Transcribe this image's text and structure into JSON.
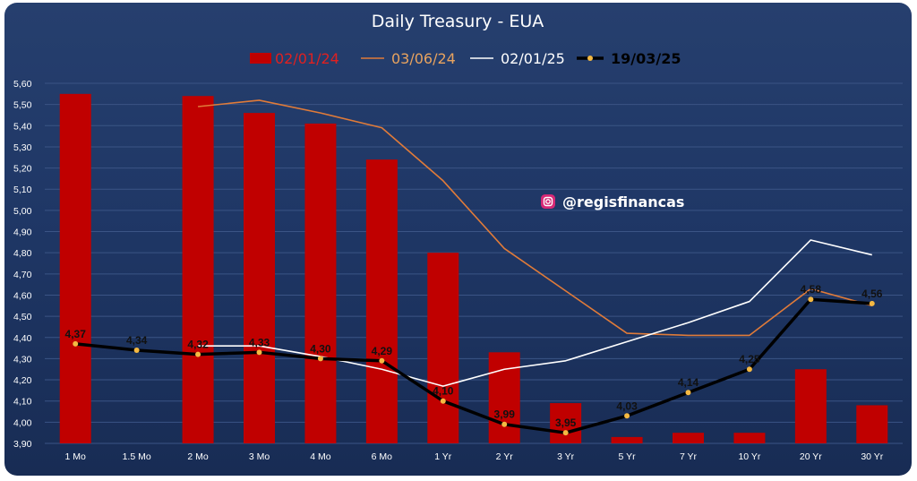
{
  "chart_data": {
    "type": "bar",
    "title": "Daily Treasury - EUA",
    "categories": [
      "1 Mo",
      "1.5 Mo",
      "2 Mo",
      "3 Mo",
      "4 Mo",
      "6 Mo",
      "1 Yr",
      "2 Yr",
      "3 Yr",
      "5 Yr",
      "7 Yr",
      "10 Yr",
      "20 Yr",
      "30 Yr"
    ],
    "ylim": [
      3.9,
      5.6
    ],
    "yticks": [
      "3,90",
      "4,00",
      "4,10",
      "4,20",
      "4,30",
      "4,40",
      "4,50",
      "4,60",
      "4,70",
      "4,80",
      "4,90",
      "5,00",
      "5,10",
      "5,20",
      "5,30",
      "5,40",
      "5,50",
      "5,60"
    ],
    "grid": true,
    "legend_position": "top",
    "series": [
      {
        "name": "02/01/24",
        "type": "bar",
        "color": "#c00000",
        "values": [
          5.55,
          null,
          5.54,
          5.46,
          5.41,
          5.24,
          4.8,
          4.33,
          4.09,
          3.93,
          3.95,
          3.95,
          4.25,
          4.08
        ]
      },
      {
        "name": "03/06/24",
        "type": "line",
        "color": "#e07b39",
        "values": [
          null,
          null,
          5.49,
          5.52,
          5.46,
          5.39,
          5.14,
          4.82,
          4.62,
          4.42,
          4.41,
          4.41,
          4.63,
          4.55
        ]
      },
      {
        "name": "02/01/25",
        "type": "line",
        "color": "#ffffff",
        "values": [
          null,
          null,
          4.36,
          4.36,
          4.31,
          4.25,
          4.17,
          4.25,
          4.29,
          4.38,
          4.47,
          4.57,
          4.86,
          4.79
        ]
      },
      {
        "name": "19/03/25",
        "type": "line",
        "color": "#000000",
        "marker_color": "#f5b942",
        "values": [
          4.37,
          4.34,
          4.32,
          4.33,
          4.3,
          4.29,
          4.1,
          3.99,
          3.95,
          4.03,
          4.14,
          4.25,
          4.58,
          4.56
        ],
        "labels": [
          "4,37",
          "4,34",
          "4,32",
          "4,33",
          "4,30",
          "4,29",
          "4,10",
          "3,99",
          "3,95",
          "4,03",
          "4,14",
          "4,25",
          "4,58",
          "4,56"
        ]
      }
    ]
  },
  "watermark": {
    "handle": "@regisfinancas",
    "icon": "instagram-icon"
  }
}
